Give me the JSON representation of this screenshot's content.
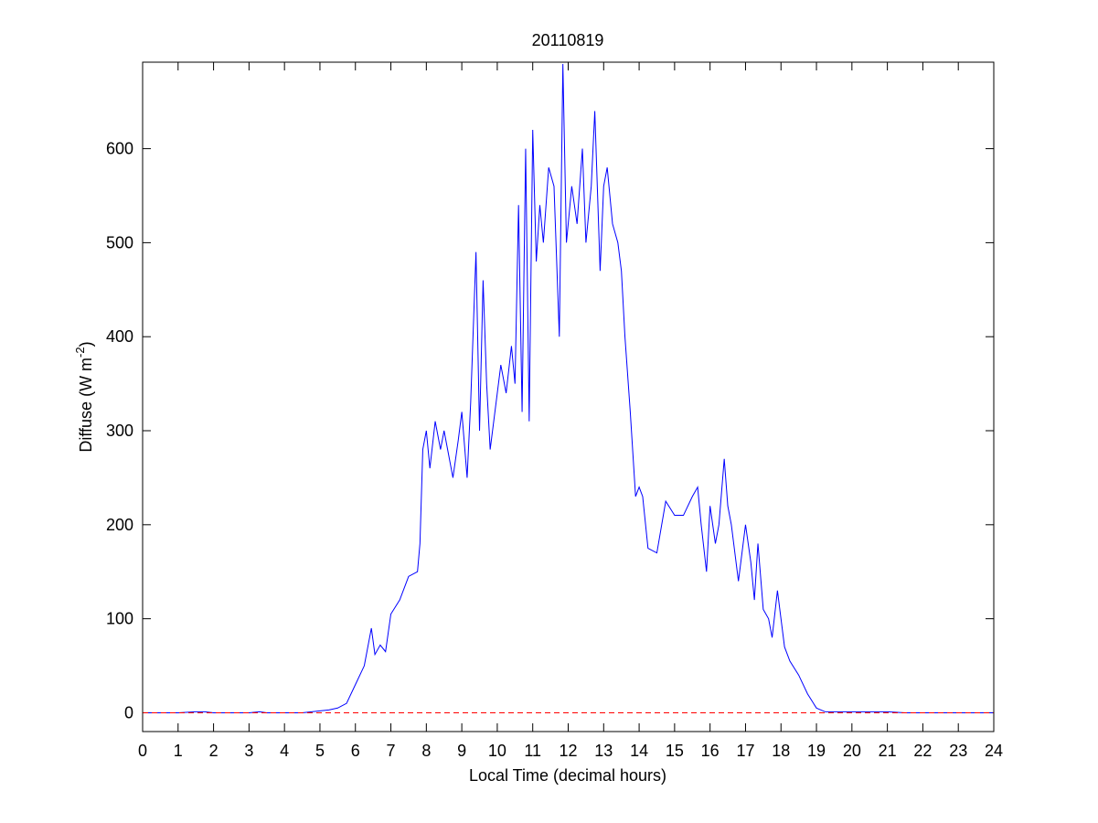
{
  "chart_data": {
    "type": "line",
    "title": "20110819",
    "xlabel": "Local Time (decimal hours)",
    "ylabel": {
      "text": "Diffuse (W m",
      "superscript": "-2",
      "suffix": ")"
    },
    "xlim": [
      0,
      24
    ],
    "ylim": [
      -20,
      692
    ],
    "xticks": [
      0,
      1,
      2,
      3,
      4,
      5,
      6,
      7,
      8,
      9,
      10,
      11,
      12,
      13,
      14,
      15,
      16,
      17,
      18,
      19,
      20,
      21,
      22,
      23,
      24
    ],
    "yticks": [
      0,
      100,
      200,
      300,
      400,
      500,
      600
    ],
    "reference_line": {
      "value": 0,
      "color": "#ff0000"
    },
    "series": [
      {
        "name": "Diffuse",
        "color": "#0000ff",
        "x": [
          0,
          0.5,
          1,
          1.5,
          1.75,
          2,
          2.5,
          3,
          3.3,
          3.5,
          4,
          4.5,
          5,
          5.25,
          5.5,
          5.75,
          6,
          6.25,
          6.45,
          6.55,
          6.7,
          6.85,
          7,
          7.25,
          7.5,
          7.75,
          7.82,
          7.9,
          8,
          8.1,
          8.25,
          8.4,
          8.5,
          8.65,
          8.75,
          8.9,
          9,
          9.15,
          9.25,
          9.4,
          9.5,
          9.6,
          9.7,
          9.8,
          10,
          10.1,
          10.25,
          10.4,
          10.5,
          10.6,
          10.7,
          10.8,
          10.9,
          11,
          11.1,
          11.2,
          11.3,
          11.45,
          11.6,
          11.75,
          11.85,
          11.95,
          12.1,
          12.25,
          12.4,
          12.5,
          12.65,
          12.75,
          12.9,
          13,
          13.1,
          13.25,
          13.4,
          13.5,
          13.6,
          13.75,
          13.9,
          14,
          14.1,
          14.25,
          14.5,
          14.75,
          15,
          15.25,
          15.5,
          15.65,
          15.75,
          15.9,
          16,
          16.15,
          16.25,
          16.4,
          16.5,
          16.6,
          16.8,
          17,
          17.15,
          17.25,
          17.35,
          17.5,
          17.65,
          17.75,
          17.9,
          18,
          18.1,
          18.25,
          18.5,
          18.75,
          19,
          19.25,
          19.5,
          20,
          20.5,
          21,
          21.5,
          22,
          22.5,
          23,
          23.5,
          24
        ],
        "values": [
          0,
          0,
          0,
          1,
          1,
          0,
          0,
          0,
          1,
          0,
          0,
          0,
          2,
          3,
          5,
          10,
          30,
          50,
          90,
          62,
          72,
          65,
          105,
          120,
          145,
          150,
          180,
          280,
          300,
          260,
          310,
          280,
          300,
          270,
          250,
          290,
          320,
          250,
          330,
          490,
          300,
          460,
          350,
          280,
          340,
          370,
          340,
          390,
          350,
          540,
          320,
          600,
          310,
          620,
          480,
          540,
          500,
          580,
          560,
          400,
          690,
          500,
          560,
          520,
          600,
          500,
          560,
          640,
          470,
          560,
          580,
          520,
          500,
          470,
          400,
          320,
          230,
          240,
          230,
          175,
          170,
          225,
          210,
          210,
          230,
          240,
          200,
          150,
          220,
          180,
          200,
          270,
          220,
          200,
          140,
          200,
          160,
          120,
          180,
          110,
          100,
          80,
          130,
          100,
          70,
          55,
          40,
          20,
          5,
          1,
          1,
          1,
          1,
          1,
          0,
          0,
          0,
          0,
          0,
          0
        ]
      }
    ]
  }
}
